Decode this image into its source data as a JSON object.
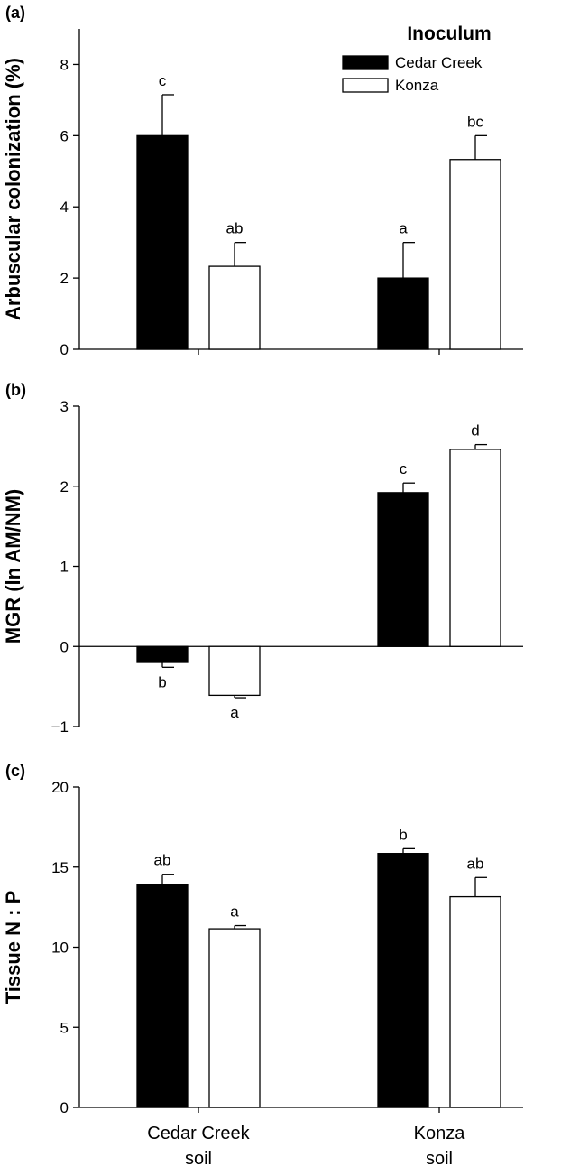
{
  "chart_data": [
    {
      "type": "bar",
      "panel_tag": "(a)",
      "ylabel": "Arbuscular colonization (%)",
      "ylim": [
        0,
        9
      ],
      "yticks": [
        0,
        2,
        4,
        6,
        8
      ],
      "ytick_labels": [
        "0",
        "2",
        "4",
        "6",
        "8"
      ],
      "categories": [
        "Cedar Creek soil",
        "Konza soil"
      ],
      "series": [
        {
          "name": "Cedar Creek",
          "color": "#000000",
          "values": [
            6.0,
            2.0
          ],
          "errors": [
            1.15,
            1.0
          ],
          "sig_labels": [
            "c",
            "a"
          ]
        },
        {
          "name": "Konza",
          "color": "#ffffff",
          "values": [
            2.33,
            5.33
          ],
          "errors": [
            0.67,
            0.67
          ],
          "sig_labels": [
            "ab",
            "bc"
          ]
        }
      ],
      "legend": {
        "title": "Inoculum",
        "placement": "top-right"
      }
    },
    {
      "type": "bar",
      "panel_tag": "(b)",
      "ylabel": "MGR (ln AM/NM)",
      "ylim": [
        -1,
        3
      ],
      "yticks": [
        -1,
        0,
        1,
        2,
        3
      ],
      "ytick_labels": [
        "−1",
        "0",
        "1",
        "2",
        "3"
      ],
      "categories": [
        "Cedar Creek soil",
        "Konza soil"
      ],
      "series": [
        {
          "name": "Cedar Creek",
          "color": "#000000",
          "values": [
            -0.2,
            1.92
          ],
          "errors": [
            0.06,
            0.12
          ],
          "sig_labels": [
            "b",
            "c"
          ]
        },
        {
          "name": "Konza",
          "color": "#ffffff",
          "values": [
            -0.61,
            2.46
          ],
          "errors": [
            0.03,
            0.06
          ],
          "sig_labels": [
            "a",
            "d"
          ]
        }
      ]
    },
    {
      "type": "bar",
      "panel_tag": "(c)",
      "ylabel": "Tissue N : P",
      "ylim": [
        0,
        20
      ],
      "yticks": [
        0,
        5,
        10,
        15,
        20
      ],
      "ytick_labels": [
        "0",
        "5",
        "10",
        "15",
        "20"
      ],
      "categories": [
        "Cedar Creek soil",
        "Konza soil"
      ],
      "series": [
        {
          "name": "Cedar Creek",
          "color": "#000000",
          "values": [
            13.9,
            15.85
          ],
          "errors": [
            0.65,
            0.3
          ],
          "sig_labels": [
            "ab",
            "b"
          ]
        },
        {
          "name": "Konza",
          "color": "#ffffff",
          "values": [
            11.15,
            13.15
          ],
          "errors": [
            0.2,
            1.2
          ],
          "sig_labels": [
            "a",
            "ab"
          ]
        }
      ]
    }
  ],
  "x_category_labels": [
    [
      "Cedar Creek",
      "soil"
    ],
    [
      "Konza",
      "soil"
    ]
  ]
}
